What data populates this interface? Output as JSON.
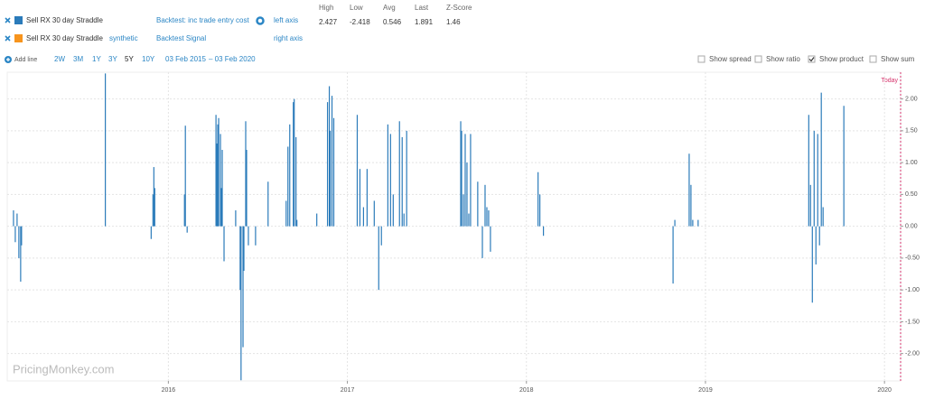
{
  "legend": {
    "stats_headers": [
      "High",
      "Low",
      "Avg",
      "Last",
      "Z-Score"
    ],
    "rows": [
      {
        "name": "Sell RX 30 day Straddle",
        "color": "#2b7bba",
        "study": "Backtest: inc trade entry cost",
        "axis": "left axis",
        "stats": [
          2.427,
          -2.418,
          0.546,
          1.891,
          1.46
        ]
      },
      {
        "name": "Sell RX 30 day Straddle",
        "color": "#f7941d",
        "source": "synthetic",
        "study": "Backtest Signal",
        "axis": "right axis"
      }
    ]
  },
  "toolbar": {
    "add_line": "Add line",
    "ranges": [
      "2W",
      "3M",
      "1Y",
      "3Y",
      "5Y",
      "10Y"
    ],
    "active_range": 4,
    "date_from": "03 Feb 2015",
    "date_to": "– 03 Feb 2020",
    "options": [
      {
        "label": "Show spread",
        "checked": false
      },
      {
        "label": "Show ratio",
        "checked": false
      },
      {
        "label": "Show product",
        "checked": true
      },
      {
        "label": "Show sum",
        "checked": false
      }
    ]
  },
  "watermark": "PricingMonkey.com",
  "chart_data": {
    "type": "bar",
    "annotation": "Today",
    "x": [
      2015.135,
      2015.145,
      2015.155,
      2015.165,
      2015.175,
      2015.18,
      2015.648,
      2015.904,
      2015.914,
      2015.919,
      2015.924,
      2016.09,
      2016.095,
      2016.105,
      2016.266,
      2016.271,
      2016.276,
      2016.281,
      2016.291,
      2016.296,
      2016.301,
      2016.311,
      2016.376,
      2016.401,
      2016.406,
      2016.417,
      2016.422,
      2016.432,
      2016.437,
      2016.447,
      2016.487,
      2016.557,
      2016.658,
      2016.668,
      2016.678,
      2016.698,
      2016.703,
      2016.713,
      2016.718,
      2016.829,
      2016.889,
      2016.899,
      2016.904,
      2016.914,
      2016.924,
      2017.055,
      2017.07,
      2017.09,
      2017.11,
      2017.15,
      2017.175,
      2017.19,
      2017.226,
      2017.241,
      2017.256,
      2017.291,
      2017.306,
      2017.316,
      2017.331,
      2017.633,
      2017.638,
      2017.648,
      2017.658,
      2017.668,
      2017.678,
      2017.688,
      2017.728,
      2017.754,
      2017.769,
      2017.779,
      2017.789,
      2017.799,
      2018.065,
      2018.075,
      2018.095,
      2018.819,
      2018.829,
      2018.909,
      2018.919,
      2018.929,
      2018.959,
      2019.577,
      2019.587,
      2019.597,
      2019.607,
      2019.617,
      2019.627,
      2019.637,
      2019.647,
      2019.657,
      2019.773
    ],
    "series": [
      {
        "name": "Sell RX 30 day Straddle",
        "color": "#2b7bba",
        "values": [
          0.25,
          -0.25,
          0.2,
          -0.5,
          -0.87,
          -0.3,
          2.4,
          -0.2,
          0.5,
          0.93,
          0.6,
          0.5,
          1.58,
          -0.1,
          1.75,
          1.3,
          1.6,
          1.7,
          1.45,
          0.6,
          1.2,
          -0.55,
          0.25,
          -1.0,
          -2.42,
          -1.9,
          -0.7,
          1.65,
          1.2,
          -0.3,
          -0.3,
          0.7,
          0.4,
          1.25,
          1.6,
          1.95,
          2.0,
          1.4,
          0.1,
          0.2,
          1.95,
          2.2,
          1.5,
          2.05,
          1.7,
          1.75,
          0.9,
          0.3,
          0.9,
          0.4,
          -1.0,
          -0.3,
          1.6,
          1.45,
          0.5,
          1.65,
          1.4,
          0.2,
          1.5,
          1.65,
          1.5,
          0.5,
          1.45,
          1.0,
          0.2,
          1.45,
          0.7,
          -0.5,
          0.65,
          0.3,
          0.25,
          -0.4,
          0.85,
          0.5,
          -0.15,
          -0.9,
          0.1,
          1.14,
          0.65,
          0.1,
          0.1,
          1.75,
          0.65,
          -1.2,
          1.5,
          -0.6,
          1.45,
          -0.3,
          2.1,
          0.3,
          1.891
        ]
      }
    ],
    "xlim": [
      2015.1,
      2020.09
    ],
    "xticks": [
      2016,
      2017,
      2018,
      2019,
      2020
    ],
    "ylim": [
      -2.43,
      2.42
    ],
    "yticks": [
      {
        "value": -2,
        "label": "-2.00"
      },
      {
        "value": -1.5,
        "label": "-1.50"
      },
      {
        "value": -1,
        "label": "-1.00"
      },
      {
        "value": -0.5,
        "label": "-0.50"
      },
      {
        "value": 0,
        "label": "0.00"
      },
      {
        "value": 0.5,
        "label": "0.50"
      },
      {
        "value": 1,
        "label": "1.00"
      },
      {
        "value": 1.5,
        "label": "1.50"
      },
      {
        "value": 2,
        "label": "2.00"
      }
    ],
    "grid": true
  }
}
